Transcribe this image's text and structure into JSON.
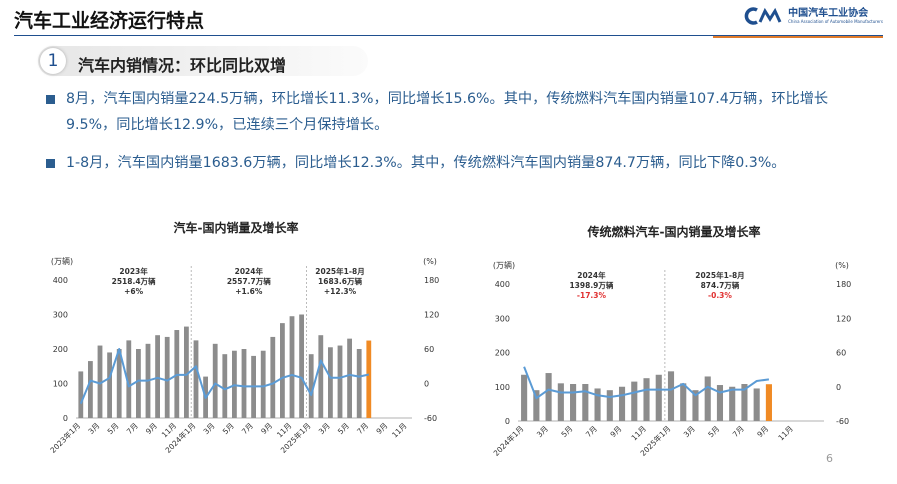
{
  "header": {
    "title": "汽车工业经济运行特点"
  },
  "logo": {
    "name": "中国汽车工业协会",
    "sub": "China Association of Automobile Manufacturers"
  },
  "section": {
    "number": "1",
    "title": "汽车内销情况：环比同比双增"
  },
  "bullets": [
    {
      "text": "8月，汽车国内销量224.5万辆，环比增长11.3%，同比增长15.6%。其中，传统燃料汽车国内销量107.4万辆，环比增长9.5%，同比增长12.9%，已连续三个月保持增长。"
    },
    {
      "text": "1-8月，汽车国内销量1683.6万辆，同比增长12.3%。其中，传统燃料汽车国内销量874.7万辆，同比下降0.3%。"
    }
  ],
  "page_number": "6",
  "colors": {
    "bar": "#8c8c8c",
    "highlight_bar": "#f08a24",
    "line": "#5b9bd5",
    "negative": "#e03030"
  },
  "chart_data": [
    {
      "type": "bar",
      "title": "汽车-国内销量及增长率",
      "ylabel": "(万辆)",
      "y2label": "(%)",
      "ylim": [
        0,
        400
      ],
      "yticks": [
        0,
        100,
        200,
        300,
        400
      ],
      "y2lim": [
        -60,
        180
      ],
      "y2ticks": [
        -60,
        0,
        60,
        120,
        180
      ],
      "xtick_labels": [
        "2023年1月",
        "3月",
        "5月",
        "7月",
        "9月",
        "11月",
        "2024年1月",
        "3月",
        "5月",
        "7月",
        "9月",
        "11月",
        "2025年1月",
        "3月",
        "5月",
        "7月",
        "9月",
        "11月"
      ],
      "period_labels": [
        {
          "lines": [
            "2023年",
            "2518.4万辆",
            "+6%"
          ]
        },
        {
          "lines": [
            "2024年",
            "2557.7万辆",
            "+1.6%"
          ]
        },
        {
          "lines": [
            "2025年1-8月",
            "1683.6万辆",
            "+12.3%"
          ]
        }
      ],
      "series": [
        {
          "type": "bar",
          "values": [
            135,
            165,
            210,
            190,
            200,
            225,
            200,
            215,
            240,
            235,
            255,
            265,
            225,
            120,
            215,
            185,
            195,
            200,
            180,
            195,
            235,
            275,
            295,
            300,
            185,
            240,
            205,
            210,
            230,
            200,
            224.5
          ]
        },
        {
          "type": "line",
          "axis": "right",
          "values": [
            -35,
            5,
            0,
            10,
            60,
            -5,
            5,
            5,
            10,
            5,
            15,
            15,
            30,
            -25,
            0,
            -10,
            -3,
            -5,
            -5,
            -5,
            0,
            10,
            15,
            10,
            -20,
            40,
            10,
            10,
            15,
            12,
            15.6
          ]
        }
      ]
    },
    {
      "type": "bar",
      "title": "传统燃料汽车-国内销量及增长率",
      "ylabel": "(万辆)",
      "y2label": "(%)",
      "ylim": [
        0,
        400
      ],
      "yticks": [
        0,
        100,
        200,
        300,
        400
      ],
      "y2lim": [
        -60,
        180
      ],
      "y2ticks": [
        -60,
        0,
        60,
        120,
        180
      ],
      "xtick_labels": [
        "2024年1月",
        "3月",
        "5月",
        "7月",
        "9月",
        "11月",
        "2025年1月",
        "3月",
        "5月",
        "7月",
        "9月",
        "11月"
      ],
      "period_labels": [
        {
          "lines": [
            "2024年",
            "1398.9万辆",
            "-17.3%"
          ]
        },
        {
          "lines": [
            "2025年1-8月",
            "874.7万辆",
            "-0.3%"
          ]
        }
      ],
      "series": [
        {
          "type": "bar",
          "values": [
            135,
            90,
            140,
            110,
            108,
            108,
            95,
            90,
            100,
            115,
            125,
            135,
            145,
            110,
            90,
            130,
            105,
            100,
            108,
            95,
            107.4
          ]
        },
        {
          "type": "line",
          "axis": "right",
          "values": [
            35,
            -20,
            -5,
            -10,
            -10,
            -8,
            -15,
            -18,
            -15,
            -10,
            -5,
            -5,
            -5,
            5,
            -15,
            0,
            -10,
            -5,
            -5,
            10,
            12.9
          ]
        }
      ]
    }
  ]
}
